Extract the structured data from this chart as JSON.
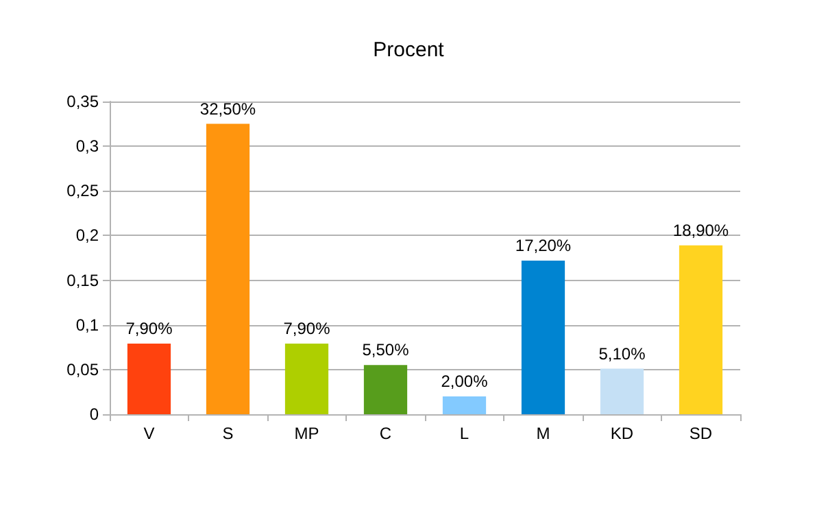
{
  "chart_data": {
    "type": "bar",
    "title": "Procent",
    "categories": [
      "V",
      "S",
      "MP",
      "C",
      "L",
      "M",
      "KD",
      "SD"
    ],
    "values": [
      0.079,
      0.325,
      0.079,
      0.055,
      0.02,
      0.172,
      0.051,
      0.189
    ],
    "colors": [
      "#ff420e",
      "#ff950e",
      "#aecf00",
      "#579d1c",
      "#83caff",
      "#0084d1",
      "#c5e0f5",
      "#ffd320"
    ],
    "value_labels": [
      "7,90%",
      "32,50%",
      "7,90%",
      "5,50%",
      "2,00%",
      "17,20%",
      "5,10%",
      "18,90%"
    ],
    "ylim": [
      0,
      0.35
    ],
    "yticks": [
      0,
      {
        "value": 0.05,
        "label": "0,05"
      },
      {
        "value": 0.1,
        "label": "0,1"
      },
      {
        "value": 0.15,
        "label": "0,15"
      },
      {
        "value": 0.2,
        "label": "0,2"
      },
      {
        "value": 0.25,
        "label": "0,25"
      },
      {
        "value": 0.3,
        "label": "0,3"
      },
      {
        "value": 0.35,
        "label": "0,35"
      }
    ],
    "grid": "y"
  }
}
